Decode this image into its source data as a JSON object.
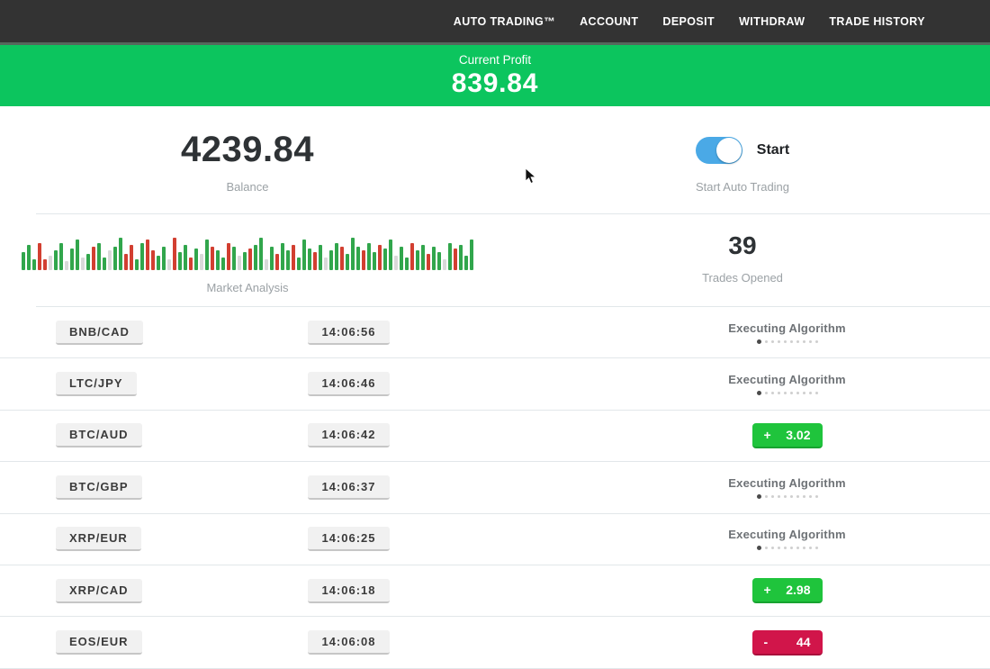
{
  "nav": {
    "items": [
      "AUTO TRADING™",
      "ACCOUNT",
      "DEPOSIT",
      "WITHDRAW",
      "TRADE HISTORY"
    ]
  },
  "profit_banner": {
    "label": "Current Profit",
    "value": "839.84"
  },
  "stats": {
    "balance": {
      "value": "4239.84",
      "label": "Balance"
    },
    "auto_trading": {
      "toggle_on": true,
      "toggle_label": "Start",
      "caption": "Start Auto Trading"
    },
    "market_analysis": {
      "label": "Market Analysis"
    },
    "trades_opened": {
      "value": "39",
      "label": "Trades Opened"
    }
  },
  "market_bars": [
    "g20",
    "g28",
    "g12",
    "r30",
    "r12",
    "l16",
    "g22",
    "g30",
    "l10",
    "g24",
    "g34",
    "l14",
    "g18",
    "r26",
    "g30",
    "g14",
    "l22",
    "g26",
    "g36",
    "r18",
    "r28",
    "g12",
    "g30",
    "r34",
    "r22",
    "g16",
    "g26",
    "l12",
    "r36",
    "g20",
    "g28",
    "r14",
    "g24",
    "l18",
    "g34",
    "r26",
    "g22",
    "g14",
    "r30",
    "g26",
    "l16",
    "g20",
    "r24",
    "g28",
    "g36",
    "l12",
    "g26",
    "r18",
    "g30",
    "g22",
    "r28",
    "g14",
    "g34",
    "g24",
    "r20",
    "g28",
    "l14",
    "g22",
    "g30",
    "r26",
    "g18",
    "g36",
    "g26",
    "r22",
    "g30",
    "g20",
    "r28",
    "g24",
    "g34",
    "l16",
    "g26",
    "g14",
    "r30",
    "g22",
    "g28",
    "r18",
    "g26",
    "g20",
    "l12",
    "g30",
    "r24",
    "g28",
    "g16",
    "g34"
  ],
  "trades": [
    {
      "pair": "BNB/CAD",
      "time": "14:06:56",
      "status": "executing",
      "status_label": "Executing Algorithm"
    },
    {
      "pair": "LTC/JPY",
      "time": "14:06:46",
      "status": "executing",
      "status_label": "Executing Algorithm"
    },
    {
      "pair": "BTC/AUD",
      "time": "14:06:42",
      "status": "profit",
      "result": {
        "sign": "+",
        "value": "3.02"
      }
    },
    {
      "pair": "BTC/GBP",
      "time": "14:06:37",
      "status": "executing",
      "status_label": "Executing Algorithm"
    },
    {
      "pair": "XRP/EUR",
      "time": "14:06:25",
      "status": "executing",
      "status_label": "Executing Algorithm"
    },
    {
      "pair": "XRP/CAD",
      "time": "14:06:18",
      "status": "profit",
      "result": {
        "sign": "+",
        "value": "2.98"
      }
    },
    {
      "pair": "EOS/EUR",
      "time": "14:06:08",
      "status": "loss",
      "result": {
        "sign": "-",
        "value": "44"
      }
    }
  ],
  "colors": {
    "nav_bg": "#333333",
    "banner_green": "#0cc55e",
    "badge_green": "#1fc43c",
    "badge_red": "#d1154a",
    "toggle_blue": "#4aa9e6",
    "bar_green": "#31a64c",
    "bar_red": "#d23f31"
  }
}
